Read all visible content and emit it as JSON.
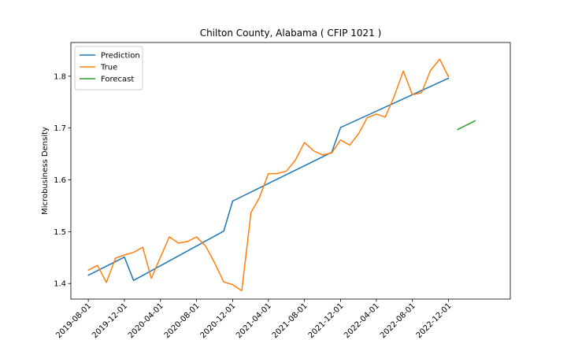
{
  "chart_data": {
    "type": "line",
    "title": "Chilton County, Alabama ( CFIP 1021 )",
    "xlabel": "",
    "ylabel": "Microbusiness Density",
    "x_tick_labels": [
      "2019-08-01",
      "2019-12-01",
      "2020-04-01",
      "2020-08-01",
      "2020-12-01",
      "2021-04-01",
      "2021-08-01",
      "2021-12-01",
      "2022-04-01",
      "2022-08-01",
      "2022-12-01"
    ],
    "y_ticks": [
      1.4,
      1.5,
      1.6,
      1.7,
      1.8
    ],
    "y_tick_labels": [
      "1.4",
      "1.5",
      "1.6",
      "1.7",
      "1.8"
    ],
    "ylim": [
      1.37,
      1.865
    ],
    "xlim": [
      "2019-06-03",
      "2023-06-28"
    ],
    "grid": false,
    "legend_position": "top-left",
    "series": [
      {
        "name": "Prediction",
        "color": "#1f77b4",
        "points": [
          [
            "2019-08-01",
            1.416
          ],
          [
            "2019-12-01",
            1.451
          ],
          [
            "2020-01-01",
            1.406
          ],
          [
            "2020-11-01",
            1.501
          ],
          [
            "2020-12-01",
            1.559
          ],
          [
            "2021-11-01",
            1.653
          ],
          [
            "2021-12-01",
            1.701
          ],
          [
            "2022-12-01",
            1.796
          ]
        ]
      },
      {
        "name": "True",
        "color": "#ff7f0e",
        "points": [
          [
            "2019-08-01",
            1.426
          ],
          [
            "2019-09-01",
            1.435
          ],
          [
            "2019-10-01",
            1.402
          ],
          [
            "2019-11-01",
            1.449
          ],
          [
            "2019-12-01",
            1.455
          ],
          [
            "2020-01-01",
            1.46
          ],
          [
            "2020-02-01",
            1.47
          ],
          [
            "2020-03-01",
            1.41
          ],
          [
            "2020-04-01",
            1.451
          ],
          [
            "2020-05-01",
            1.49
          ],
          [
            "2020-06-01",
            1.478
          ],
          [
            "2020-07-01",
            1.481
          ],
          [
            "2020-08-01",
            1.49
          ],
          [
            "2020-09-01",
            1.472
          ],
          [
            "2020-10-01",
            1.44
          ],
          [
            "2020-11-01",
            1.403
          ],
          [
            "2020-12-01",
            1.398
          ],
          [
            "2021-01-01",
            1.386
          ],
          [
            "2021-02-01",
            1.537
          ],
          [
            "2021-03-01",
            1.565
          ],
          [
            "2021-04-01",
            1.612
          ],
          [
            "2021-05-01",
            1.612
          ],
          [
            "2021-06-01",
            1.617
          ],
          [
            "2021-07-01",
            1.638
          ],
          [
            "2021-08-01",
            1.672
          ],
          [
            "2021-09-01",
            1.656
          ],
          [
            "2021-10-01",
            1.648
          ],
          [
            "2021-11-01",
            1.652
          ],
          [
            "2021-12-01",
            1.677
          ],
          [
            "2022-01-01",
            1.667
          ],
          [
            "2022-02-01",
            1.69
          ],
          [
            "2022-03-01",
            1.72
          ],
          [
            "2022-04-01",
            1.727
          ],
          [
            "2022-05-01",
            1.721
          ],
          [
            "2022-06-01",
            1.762
          ],
          [
            "2022-07-01",
            1.81
          ],
          [
            "2022-08-01",
            1.764
          ],
          [
            "2022-09-01",
            1.768
          ],
          [
            "2022-10-01",
            1.811
          ],
          [
            "2022-11-01",
            1.833
          ],
          [
            "2022-12-01",
            1.799
          ]
        ]
      },
      {
        "name": "Forecast",
        "color": "#2ca02c",
        "points": [
          [
            "2023-01-01",
            1.697
          ],
          [
            "2023-03-01",
            1.714
          ]
        ]
      }
    ]
  }
}
